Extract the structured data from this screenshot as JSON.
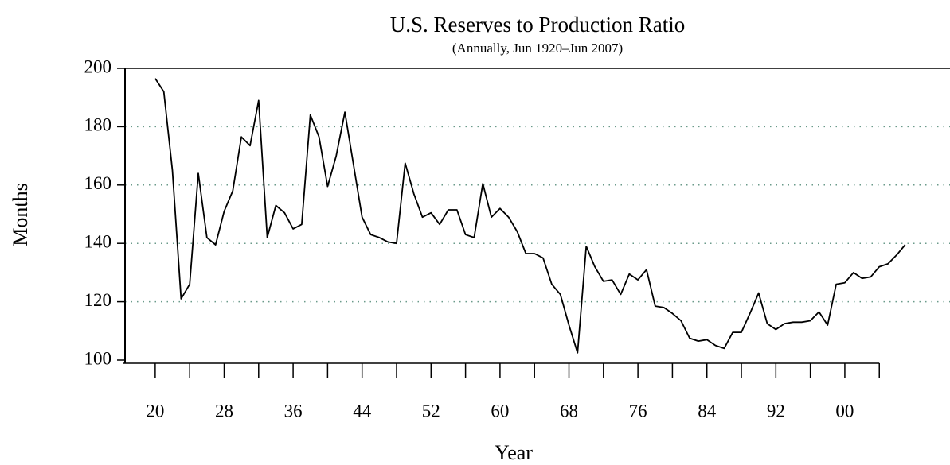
{
  "chart_data": {
    "type": "line",
    "title": "U.S. Reserves to Production Ratio",
    "subtitle": "(Annually, Jun 1920–Jun 2007)",
    "xlabel": "Year",
    "ylabel": "Months",
    "x": [
      1920,
      1921,
      1922,
      1923,
      1924,
      1925,
      1926,
      1927,
      1928,
      1929,
      1930,
      1931,
      1932,
      1933,
      1934,
      1935,
      1936,
      1937,
      1938,
      1939,
      1940,
      1941,
      1942,
      1943,
      1944,
      1945,
      1946,
      1947,
      1948,
      1949,
      1950,
      1951,
      1952,
      1953,
      1954,
      1955,
      1956,
      1957,
      1958,
      1959,
      1960,
      1961,
      1962,
      1963,
      1964,
      1965,
      1966,
      1967,
      1968,
      1969,
      1970,
      1971,
      1972,
      1973,
      1974,
      1975,
      1976,
      1977,
      1978,
      1979,
      1980,
      1981,
      1982,
      1983,
      1984,
      1985,
      1986,
      1987,
      1988,
      1989,
      1990,
      1991,
      1992,
      1993,
      1994,
      1995,
      1996,
      1997,
      1998,
      1999,
      2000,
      2001,
      2002,
      2003,
      2004,
      2005,
      2006,
      2007
    ],
    "series": [
      {
        "name": "Reserves to Production",
        "color": "#000000",
        "values": [
          196.5,
          192,
          165,
          121,
          126,
          164,
          142,
          139.5,
          151,
          158,
          176.5,
          173.5,
          189,
          142,
          153,
          150.5,
          145,
          146.5,
          184,
          176.5,
          159.5,
          170,
          185,
          167,
          149,
          143,
          142,
          140.5,
          140,
          167.5,
          157,
          149,
          150.5,
          146.5,
          151.5,
          151.5,
          143,
          142,
          160.5,
          149,
          152,
          149,
          144,
          136.5,
          136.5,
          135,
          126,
          122.5,
          112,
          102.5,
          139,
          132,
          127,
          127.5,
          122.5,
          129.5,
          127.5,
          131,
          118.5,
          118,
          116,
          113.5,
          107.5,
          106.5,
          107,
          105,
          104,
          109.5,
          109.5,
          116,
          123,
          112.5,
          110.5,
          112.5,
          113,
          113,
          113.5,
          116.5,
          112,
          126,
          126.5,
          130,
          128,
          128.5,
          132,
          133,
          136,
          139.5
        ]
      }
    ],
    "xlim": [
      1916.5,
      2012.2
    ],
    "xticks": [
      {
        "value": 1920,
        "label": "20"
      },
      {
        "value": 1928,
        "label": "28"
      },
      {
        "value": 1936,
        "label": "36"
      },
      {
        "value": 1944,
        "label": "44"
      },
      {
        "value": 1952,
        "label": "52"
      },
      {
        "value": 1960,
        "label": "60"
      },
      {
        "value": 1968,
        "label": "68"
      },
      {
        "value": 1976,
        "label": "76"
      },
      {
        "value": 1984,
        "label": "84"
      },
      {
        "value": 1992,
        "label": "92"
      },
      {
        "value": 2000,
        "label": "00"
      }
    ],
    "xminorticks": [
      1924,
      1932,
      1940,
      1948,
      1956,
      1964,
      1972,
      1980,
      1988,
      1996,
      2004
    ],
    "ylim": [
      100,
      200
    ],
    "yticks": [
      100,
      120,
      140,
      160,
      180,
      200
    ],
    "grid": true,
    "grid_color": "#6a9a8a"
  }
}
